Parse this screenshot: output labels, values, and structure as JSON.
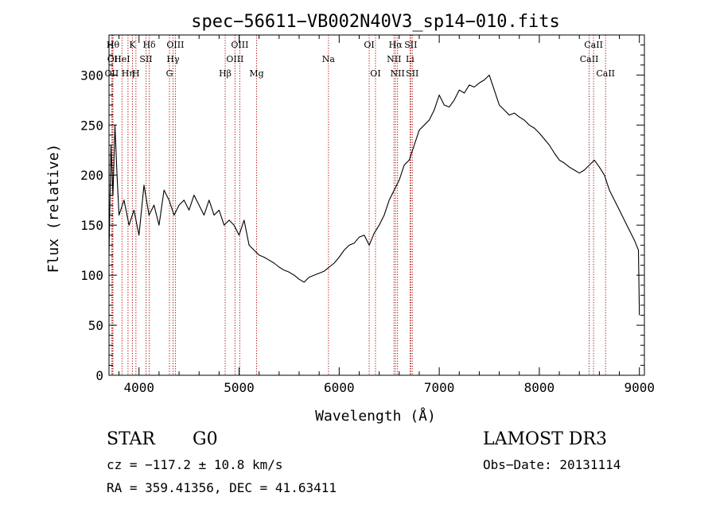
{
  "chart_data": {
    "type": "line",
    "title": "spec−56611−VB002N40V3_sp14−010.fits",
    "xlabel": "Wavelength (Å)",
    "ylabel": "Flux (relative)",
    "xlim": [
      3700,
      9050
    ],
    "ylim": [
      0,
      340
    ],
    "x_ticks": [
      4000,
      5000,
      6000,
      7000,
      8000,
      9000
    ],
    "y_ticks": [
      0,
      50,
      100,
      150,
      200,
      250,
      300
    ],
    "series": [
      {
        "name": "flux",
        "x": [
          3700,
          3720,
          3740,
          3760,
          3780,
          3800,
          3850,
          3900,
          3950,
          4000,
          4050,
          4100,
          4150,
          4200,
          4250,
          4300,
          4350,
          4400,
          4450,
          4500,
          4550,
          4600,
          4650,
          4700,
          4750,
          4800,
          4850,
          4900,
          4950,
          5000,
          5050,
          5100,
          5150,
          5200,
          5250,
          5300,
          5350,
          5400,
          5450,
          5500,
          5550,
          5600,
          5650,
          5700,
          5750,
          5800,
          5850,
          5900,
          5950,
          6000,
          6050,
          6100,
          6150,
          6200,
          6250,
          6300,
          6350,
          6400,
          6450,
          6500,
          6550,
          6600,
          6650,
          6700,
          6750,
          6800,
          6850,
          6900,
          6950,
          7000,
          7050,
          7100,
          7150,
          7200,
          7250,
          7300,
          7350,
          7400,
          7450,
          7500,
          7550,
          7600,
          7650,
          7700,
          7750,
          7800,
          7850,
          7900,
          7950,
          8000,
          8050,
          8100,
          8150,
          8200,
          8250,
          8300,
          8350,
          8400,
          8450,
          8500,
          8550,
          8600,
          8650,
          8700,
          8750,
          8800,
          8850,
          8900,
          8950,
          8990,
          9000
        ],
        "y": [
          120,
          230,
          180,
          250,
          200,
          160,
          175,
          150,
          165,
          140,
          190,
          160,
          170,
          150,
          185,
          175,
          160,
          170,
          175,
          165,
          180,
          170,
          160,
          175,
          160,
          165,
          150,
          155,
          150,
          140,
          155,
          130,
          125,
          120,
          118,
          115,
          112,
          108,
          105,
          103,
          100,
          96,
          93,
          98,
          100,
          102,
          104,
          108,
          112,
          118,
          125,
          130,
          132,
          138,
          140,
          130,
          142,
          150,
          160,
          175,
          185,
          195,
          210,
          215,
          230,
          245,
          250,
          255,
          265,
          280,
          270,
          268,
          275,
          285,
          282,
          290,
          288,
          292,
          295,
          300,
          285,
          270,
          265,
          260,
          262,
          258,
          255,
          250,
          247,
          242,
          236,
          230,
          222,
          215,
          212,
          208,
          205,
          202,
          205,
          210,
          215,
          208,
          200,
          185,
          175,
          165,
          155,
          145,
          135,
          125,
          60
        ],
        "style": {
          "color": "#000000"
        }
      }
    ],
    "annotations": [
      {
        "label": "Hθ",
        "x": 3740,
        "row": 0
      },
      {
        "label": "OII",
        "x": 3727,
        "row": 2
      },
      {
        "label": "OI",
        "x": 3735,
        "row": 1
      },
      {
        "label": "K",
        "x": 3934,
        "row": 0
      },
      {
        "label": "HeI",
        "x": 3830,
        "row": 1
      },
      {
        "label": "Hη",
        "x": 3890,
        "row": 2
      },
      {
        "label": "H",
        "x": 3969,
        "row": 2
      },
      {
        "label": "SII",
        "x": 4070,
        "row": 1
      },
      {
        "label": "Hδ",
        "x": 4102,
        "row": 0
      },
      {
        "label": "OIII",
        "x": 4363,
        "row": 0
      },
      {
        "label": "Hγ",
        "x": 4340,
        "row": 1
      },
      {
        "label": "G",
        "x": 4304,
        "row": 2
      },
      {
        "label": "Hβ",
        "x": 4861,
        "row": 2
      },
      {
        "label": "OIII",
        "x": 5007,
        "row": 0
      },
      {
        "label": "OIII",
        "x": 4959,
        "row": 1
      },
      {
        "label": "Mg",
        "x": 5175,
        "row": 2
      },
      {
        "label": "Na",
        "x": 5893,
        "row": 1
      },
      {
        "label": "OI",
        "x": 6300,
        "row": 0
      },
      {
        "label": "OI",
        "x": 6363,
        "row": 2
      },
      {
        "label": "Hα",
        "x": 6563,
        "row": 0
      },
      {
        "label": "NII",
        "x": 6548,
        "row": 1
      },
      {
        "label": "NII",
        "x": 6583,
        "row": 2
      },
      {
        "label": "SII",
        "x": 6716,
        "row": 0
      },
      {
        "label": "Li",
        "x": 6708,
        "row": 1
      },
      {
        "label": "SII",
        "x": 6731,
        "row": 2
      },
      {
        "label": "CaII",
        "x": 8542,
        "row": 0
      },
      {
        "label": "CaII",
        "x": 8498,
        "row": 1
      },
      {
        "label": "CaII",
        "x": 8662,
        "row": 2
      }
    ]
  },
  "info": {
    "class_label": "STAR",
    "subclass": "G0",
    "survey": "LAMOST DR3",
    "cz": "cz = −117.2 ± 10.8 km/s",
    "obs_date": "Obs−Date: 20131114",
    "radec": "RA = 359.41356, DEC =  41.63411"
  },
  "colors": {
    "axis": "#000000",
    "line_marker": "#aa0000",
    "background": "#ffffff"
  }
}
